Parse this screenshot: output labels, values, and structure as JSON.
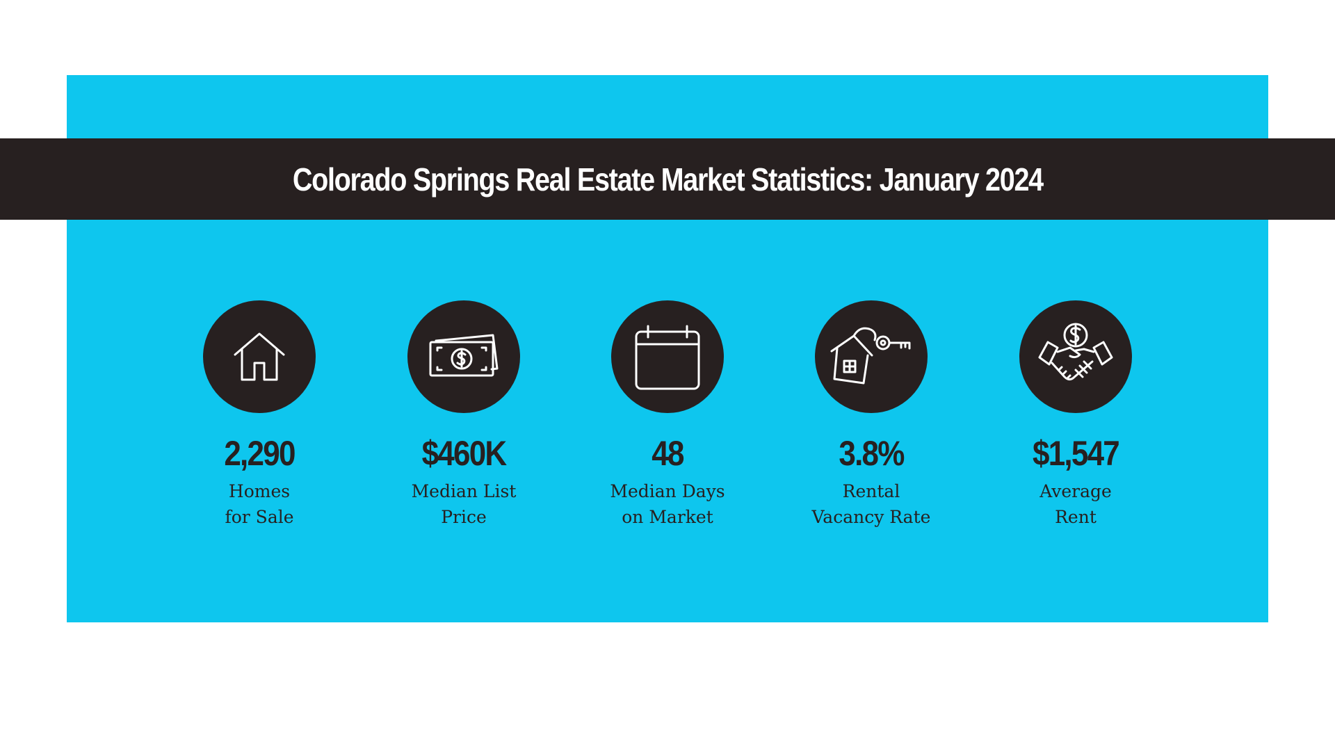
{
  "title": "Colorado Springs Real Estate Market Statistics: January 2024",
  "colors": {
    "panel": "#0ec6ee",
    "banner": "#272020",
    "text_light": "#ffffff",
    "text_dark": "#272020"
  },
  "stats": [
    {
      "icon": "house-icon",
      "value": "2,290",
      "label_line1": "Homes",
      "label_line2": "for Sale"
    },
    {
      "icon": "cash-icon",
      "value": "$460K",
      "label_line1": "Median List",
      "label_line2": "Price"
    },
    {
      "icon": "calendar-icon",
      "value": "48",
      "label_line1": "Median Days",
      "label_line2": "on Market"
    },
    {
      "icon": "house-key-icon",
      "value": "3.8%",
      "label_line1": "Rental",
      "label_line2": "Vacancy Rate"
    },
    {
      "icon": "handshake-dollar-icon",
      "value": "$1,547",
      "label_line1": "Average",
      "label_line2": "Rent"
    }
  ]
}
